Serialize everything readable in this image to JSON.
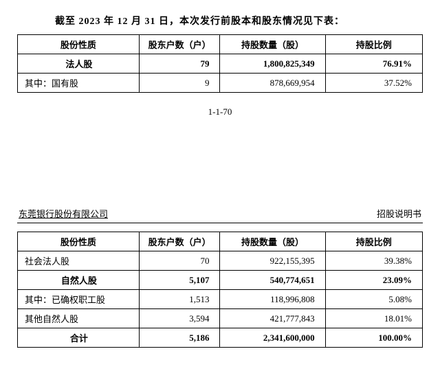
{
  "intro_text": "截至 2023 年 12 月 31 日，本次发行前股本和股东情况见下表：",
  "table_headers": {
    "col1": "股份性质",
    "col2": "股东户数（户）",
    "col3": "持股数量（股）",
    "col4": "持股比例"
  },
  "table1_rows": [
    {
      "label": "法人股",
      "bold": true,
      "center": true,
      "households": "79",
      "shares": "1,800,825,349",
      "ratio": "76.91%"
    },
    {
      "label": "其中：国有股",
      "bold": false,
      "center": false,
      "households": "9",
      "shares": "878,669,954",
      "ratio": "37.52%"
    }
  ],
  "page_number": "1-1-70",
  "header_left": "东莞银行股份有限公司",
  "header_right": "招股说明书",
  "table2_rows": [
    {
      "label": "社会法人股",
      "bold": false,
      "indent": false,
      "households": "70",
      "shares": "922,155,395",
      "ratio": "39.38%"
    },
    {
      "label": "自然人股",
      "bold": true,
      "indent": true,
      "households": "5,107",
      "shares": "540,774,651",
      "ratio": "23.09%"
    },
    {
      "label": "其中：已确权职工股",
      "bold": false,
      "indent": false,
      "households": "1,513",
      "shares": "118,996,808",
      "ratio": "5.08%"
    },
    {
      "label": "其他自然人股",
      "bold": false,
      "indent": false,
      "households": "3,594",
      "shares": "421,777,843",
      "ratio": "18.01%"
    },
    {
      "label": "合计",
      "bold": true,
      "indent": true,
      "households": "5,186",
      "shares": "2,341,600,000",
      "ratio": "100.00%"
    }
  ]
}
